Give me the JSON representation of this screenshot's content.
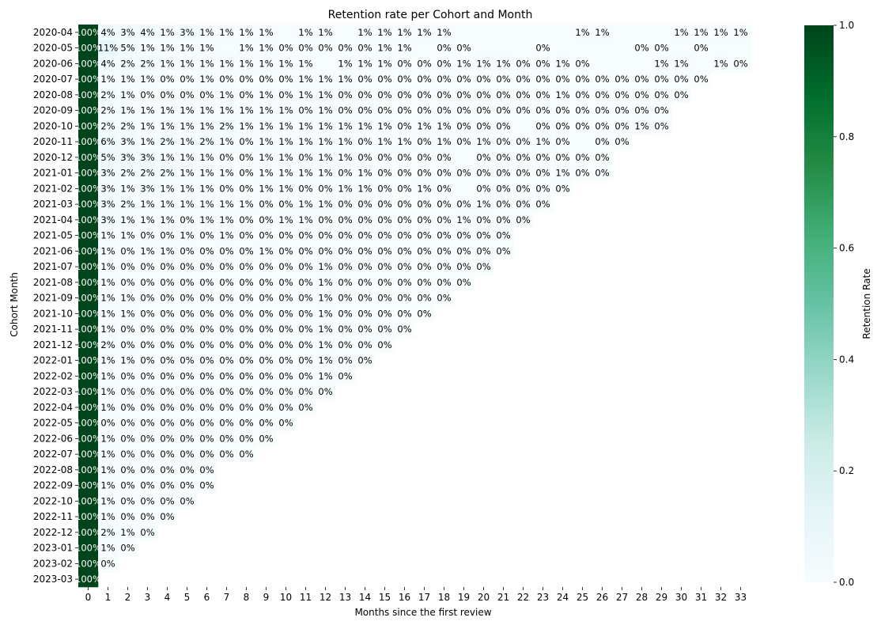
{
  "chart_data": {
    "type": "heatmap",
    "title": "Retention rate per Cohort and Month",
    "xlabel": "Months since the first review",
    "ylabel": "Cohort Month",
    "x": [
      "0",
      "1",
      "2",
      "3",
      "4",
      "5",
      "6",
      "7",
      "8",
      "9",
      "10",
      "11",
      "12",
      "13",
      "14",
      "15",
      "16",
      "17",
      "18",
      "19",
      "20",
      "21",
      "22",
      "23",
      "24",
      "25",
      "26",
      "27",
      "28",
      "29",
      "30",
      "31",
      "32",
      "33"
    ],
    "y": [
      "2020-04",
      "2020-05",
      "2020-06",
      "2020-07",
      "2020-08",
      "2020-09",
      "2020-10",
      "2020-11",
      "2020-12",
      "2021-01",
      "2021-02",
      "2021-03",
      "2021-04",
      "2021-05",
      "2021-06",
      "2021-07",
      "2021-08",
      "2021-09",
      "2021-10",
      "2021-11",
      "2021-12",
      "2022-01",
      "2022-02",
      "2022-03",
      "2022-04",
      "2022-05",
      "2022-06",
      "2022-07",
      "2022-08",
      "2022-09",
      "2022-10",
      "2022-11",
      "2022-12",
      "2023-01",
      "2023-02",
      "2023-03"
    ],
    "cells": [
      [
        "100%",
        "4%",
        "3%",
        "4%",
        "1%",
        "3%",
        "1%",
        "1%",
        "1%",
        "1%",
        "",
        "1%",
        "1%",
        "",
        "1%",
        "1%",
        "1%",
        "1%",
        "1%",
        "",
        "",
        "",
        "",
        "",
        "",
        "1%",
        "1%",
        "",
        "",
        "",
        "1%",
        "1%",
        "1%",
        "1%"
      ],
      [
        "100%",
        "11%",
        "5%",
        "1%",
        "1%",
        "1%",
        "1%",
        "",
        "1%",
        "1%",
        "0%",
        "0%",
        "0%",
        "0%",
        "0%",
        "1%",
        "1%",
        "",
        "0%",
        "0%",
        "",
        "",
        "",
        "0%",
        "",
        "",
        "",
        "",
        "0%",
        "0%",
        "",
        "0%",
        "",
        ""
      ],
      [
        "100%",
        "4%",
        "2%",
        "2%",
        "1%",
        "1%",
        "1%",
        "1%",
        "1%",
        "1%",
        "1%",
        "1%",
        "",
        "1%",
        "1%",
        "1%",
        "0%",
        "0%",
        "0%",
        "1%",
        "1%",
        "1%",
        "0%",
        "0%",
        "1%",
        "0%",
        "",
        "",
        "",
        "1%",
        "1%",
        "",
        "1%",
        "0%"
      ],
      [
        "100%",
        "1%",
        "1%",
        "1%",
        "0%",
        "0%",
        "1%",
        "0%",
        "0%",
        "0%",
        "0%",
        "1%",
        "1%",
        "1%",
        "0%",
        "0%",
        "0%",
        "0%",
        "0%",
        "0%",
        "0%",
        "0%",
        "0%",
        "0%",
        "0%",
        "0%",
        "0%",
        "0%",
        "0%",
        "0%",
        "0%",
        "0%"
      ],
      [
        "100%",
        "2%",
        "1%",
        "0%",
        "0%",
        "0%",
        "0%",
        "1%",
        "0%",
        "1%",
        "0%",
        "1%",
        "1%",
        "0%",
        "0%",
        "0%",
        "0%",
        "0%",
        "0%",
        "0%",
        "0%",
        "0%",
        "0%",
        "0%",
        "1%",
        "0%",
        "0%",
        "0%",
        "0%",
        "0%",
        "0%"
      ],
      [
        "100%",
        "2%",
        "1%",
        "1%",
        "1%",
        "1%",
        "1%",
        "1%",
        "1%",
        "1%",
        "1%",
        "0%",
        "1%",
        "0%",
        "0%",
        "0%",
        "0%",
        "0%",
        "0%",
        "0%",
        "0%",
        "0%",
        "0%",
        "0%",
        "0%",
        "0%",
        "0%",
        "0%",
        "0%",
        "0%"
      ],
      [
        "100%",
        "2%",
        "2%",
        "1%",
        "1%",
        "1%",
        "1%",
        "2%",
        "1%",
        "1%",
        "1%",
        "1%",
        "1%",
        "1%",
        "1%",
        "1%",
        "0%",
        "1%",
        "1%",
        "0%",
        "0%",
        "0%",
        "",
        "0%",
        "0%",
        "0%",
        "0%",
        "0%",
        "1%",
        "0%"
      ],
      [
        "100%",
        "6%",
        "3%",
        "1%",
        "2%",
        "1%",
        "2%",
        "1%",
        "0%",
        "1%",
        "1%",
        "1%",
        "1%",
        "1%",
        "0%",
        "1%",
        "1%",
        "0%",
        "1%",
        "0%",
        "1%",
        "0%",
        "0%",
        "1%",
        "0%",
        "",
        "0%",
        "0%"
      ],
      [
        "100%",
        "5%",
        "3%",
        "3%",
        "1%",
        "1%",
        "1%",
        "0%",
        "0%",
        "1%",
        "1%",
        "0%",
        "1%",
        "1%",
        "0%",
        "0%",
        "0%",
        "0%",
        "0%",
        "",
        "0%",
        "0%",
        "0%",
        "0%",
        "0%",
        "0%",
        "0%"
      ],
      [
        "100%",
        "3%",
        "2%",
        "2%",
        "2%",
        "1%",
        "1%",
        "1%",
        "0%",
        "1%",
        "1%",
        "1%",
        "1%",
        "0%",
        "1%",
        "0%",
        "0%",
        "0%",
        "0%",
        "0%",
        "0%",
        "0%",
        "0%",
        "0%",
        "1%",
        "0%",
        "0%"
      ],
      [
        "100%",
        "3%",
        "1%",
        "3%",
        "1%",
        "1%",
        "1%",
        "0%",
        "0%",
        "1%",
        "1%",
        "0%",
        "0%",
        "1%",
        "1%",
        "0%",
        "0%",
        "1%",
        "0%",
        "",
        "0%",
        "0%",
        "0%",
        "0%",
        "0%"
      ],
      [
        "100%",
        "3%",
        "2%",
        "1%",
        "1%",
        "1%",
        "1%",
        "1%",
        "1%",
        "0%",
        "0%",
        "1%",
        "1%",
        "0%",
        "0%",
        "0%",
        "0%",
        "0%",
        "0%",
        "0%",
        "1%",
        "0%",
        "0%",
        "0%"
      ],
      [
        "100%",
        "3%",
        "1%",
        "1%",
        "1%",
        "0%",
        "1%",
        "1%",
        "0%",
        "0%",
        "1%",
        "1%",
        "0%",
        "0%",
        "0%",
        "0%",
        "0%",
        "0%",
        "0%",
        "1%",
        "0%",
        "0%",
        "0%"
      ],
      [
        "100%",
        "1%",
        "1%",
        "0%",
        "0%",
        "1%",
        "0%",
        "1%",
        "0%",
        "0%",
        "0%",
        "0%",
        "0%",
        "0%",
        "0%",
        "0%",
        "0%",
        "0%",
        "0%",
        "0%",
        "0%",
        "0%"
      ],
      [
        "100%",
        "1%",
        "0%",
        "1%",
        "1%",
        "0%",
        "0%",
        "0%",
        "0%",
        "1%",
        "0%",
        "0%",
        "0%",
        "0%",
        "0%",
        "0%",
        "0%",
        "0%",
        "0%",
        "0%",
        "0%",
        "0%"
      ],
      [
        "100%",
        "1%",
        "0%",
        "0%",
        "0%",
        "0%",
        "0%",
        "0%",
        "0%",
        "0%",
        "0%",
        "0%",
        "1%",
        "0%",
        "0%",
        "0%",
        "0%",
        "0%",
        "0%",
        "0%",
        "0%"
      ],
      [
        "100%",
        "1%",
        "0%",
        "0%",
        "0%",
        "0%",
        "0%",
        "0%",
        "0%",
        "0%",
        "0%",
        "0%",
        "1%",
        "0%",
        "0%",
        "0%",
        "0%",
        "0%",
        "0%",
        "0%"
      ],
      [
        "100%",
        "1%",
        "1%",
        "0%",
        "0%",
        "0%",
        "0%",
        "0%",
        "0%",
        "0%",
        "0%",
        "0%",
        "1%",
        "0%",
        "0%",
        "0%",
        "0%",
        "0%",
        "0%"
      ],
      [
        "100%",
        "1%",
        "1%",
        "0%",
        "0%",
        "0%",
        "0%",
        "0%",
        "0%",
        "0%",
        "0%",
        "0%",
        "1%",
        "0%",
        "0%",
        "0%",
        "0%",
        "0%"
      ],
      [
        "100%",
        "1%",
        "0%",
        "0%",
        "0%",
        "0%",
        "0%",
        "0%",
        "0%",
        "0%",
        "0%",
        "0%",
        "1%",
        "0%",
        "0%",
        "0%",
        "0%"
      ],
      [
        "100%",
        "2%",
        "0%",
        "0%",
        "0%",
        "0%",
        "0%",
        "0%",
        "0%",
        "0%",
        "0%",
        "0%",
        "1%",
        "0%",
        "0%",
        "0%"
      ],
      [
        "100%",
        "1%",
        "1%",
        "0%",
        "0%",
        "0%",
        "0%",
        "0%",
        "0%",
        "0%",
        "0%",
        "0%",
        "1%",
        "0%",
        "0%"
      ],
      [
        "100%",
        "1%",
        "0%",
        "0%",
        "0%",
        "0%",
        "0%",
        "0%",
        "0%",
        "0%",
        "0%",
        "0%",
        "1%",
        "0%"
      ],
      [
        "100%",
        "1%",
        "0%",
        "0%",
        "0%",
        "0%",
        "0%",
        "0%",
        "0%",
        "0%",
        "0%",
        "0%",
        "0%"
      ],
      [
        "100%",
        "1%",
        "0%",
        "0%",
        "0%",
        "0%",
        "0%",
        "0%",
        "0%",
        "0%",
        "0%",
        "0%"
      ],
      [
        "100%",
        "0%",
        "0%",
        "0%",
        "0%",
        "0%",
        "0%",
        "0%",
        "0%",
        "0%",
        "0%"
      ],
      [
        "100%",
        "1%",
        "0%",
        "0%",
        "0%",
        "0%",
        "0%",
        "0%",
        "0%",
        "0%"
      ],
      [
        "100%",
        "1%",
        "0%",
        "0%",
        "0%",
        "0%",
        "0%",
        "0%",
        "0%"
      ],
      [
        "100%",
        "1%",
        "0%",
        "0%",
        "0%",
        "0%",
        "0%"
      ],
      [
        "100%",
        "1%",
        "0%",
        "0%",
        "0%",
        "0%",
        "0%"
      ],
      [
        "100%",
        "1%",
        "0%",
        "0%",
        "0%",
        "0%"
      ],
      [
        "100%",
        "1%",
        "0%",
        "0%",
        "0%"
      ],
      [
        "100%",
        "2%",
        "1%",
        "0%"
      ],
      [
        "100%",
        "1%",
        "0%"
      ],
      [
        "100%",
        "0%"
      ],
      [
        "100%"
      ]
    ],
    "colorbar": {
      "label": "Retention Rate",
      "range": [
        0.0,
        1.0
      ],
      "ticks": [
        "0.0",
        "0.2",
        "0.4",
        "0.6",
        "0.8",
        "1.0"
      ],
      "colors": [
        "#f7fcfd",
        "#e5f5f9",
        "#ccece6",
        "#99d8c9",
        "#66c2a4",
        "#41ae76",
        "#238b45",
        "#006d2c",
        "#00441b"
      ]
    },
    "grid": false
  }
}
